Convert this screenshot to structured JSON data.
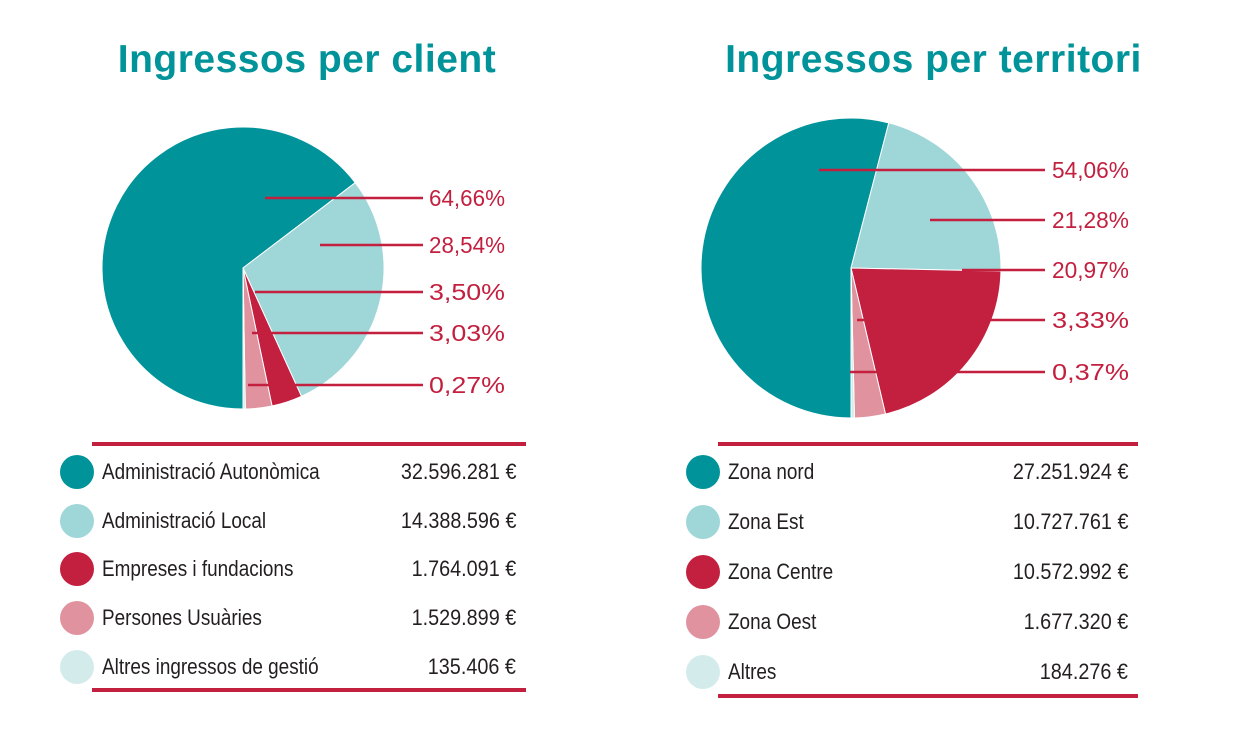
{
  "chart_data": [
    {
      "type": "pie",
      "title": "Ingressos per client",
      "categories": [
        "Administració Autonòmica",
        "Administració Local",
        "Empreses i fundacions",
        "Persones Usuàries",
        "Altres ingressos de gestió"
      ],
      "values": [
        32596281,
        14388596,
        1764091,
        1529899,
        135406
      ],
      "value_labels": [
        "32.596.281 €",
        "14.388.596 €",
        "1.764.091 €",
        "1.529.899 €",
        "135.406 €"
      ],
      "percent_labels": [
        "64,66%",
        "28,54%",
        "3,50%",
        "3,03%",
        "0,27%"
      ],
      "colors": [
        "#00939a",
        "#9fd6d8",
        "#c31f3f",
        "#e0939f",
        "#d3eceb"
      ]
    },
    {
      "type": "pie",
      "title": "Ingressos per territori",
      "categories": [
        "Zona nord",
        "Zona Est",
        "Zona Centre",
        "Zona Oest",
        "Altres"
      ],
      "values": [
        27251924,
        10727761,
        10572992,
        1677320,
        184276
      ],
      "value_labels": [
        "27.251.924 €",
        "10.727.761 €",
        "10.572.992 €",
        "1.677.320 €",
        "184.276 €"
      ],
      "percent_labels": [
        "54,06%",
        "21,28%",
        "20,97%",
        "3,33%",
        "0,37%"
      ],
      "colors": [
        "#00939a",
        "#9fd6d8",
        "#c31f3f",
        "#e0939f",
        "#d3eceb"
      ]
    }
  ]
}
